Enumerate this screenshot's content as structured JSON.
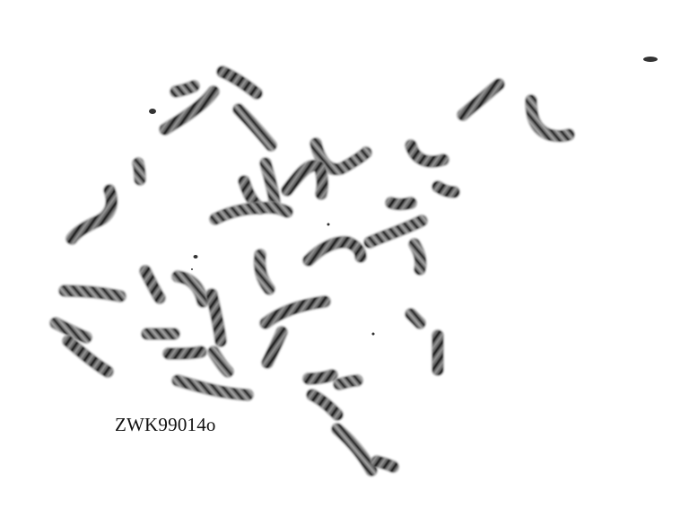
{
  "image": {
    "subject": "chromosome-metaphase-spread",
    "label_text": "ZWK99014o",
    "colors": {
      "background": "#ffffff",
      "chromatin_light": "#8a8a8a",
      "chromatin_dark": "#2e2e2e",
      "band": "#141414",
      "label": "#111111"
    }
  }
}
